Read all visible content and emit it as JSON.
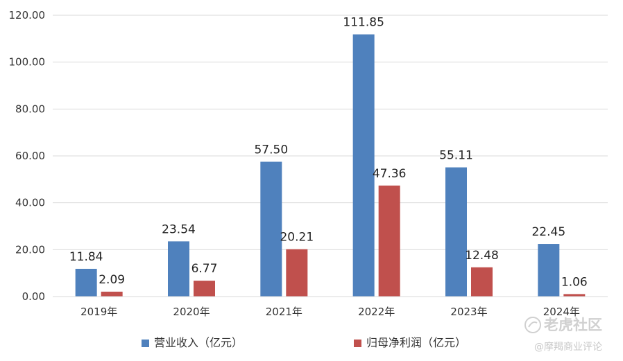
{
  "chart_data": {
    "type": "bar",
    "title": "",
    "xlabel": "",
    "ylabel": "",
    "ylim": [
      0,
      120
    ],
    "yticks": [
      "0.00",
      "20.00",
      "40.00",
      "60.00",
      "80.00",
      "100.00",
      "120.00"
    ],
    "grid": true,
    "legend_position": "bottom",
    "categories": [
      "2019年",
      "2020年",
      "2021年",
      "2022年",
      "2023年",
      "2024年"
    ],
    "series": [
      {
        "name": "营业收入（亿元）",
        "color": "#4f81bd",
        "values": [
          11.84,
          23.54,
          57.5,
          111.85,
          55.11,
          22.45
        ],
        "labels": [
          "11.84",
          "23.54",
          "57.50",
          "111.85",
          "55.11",
          "22.45"
        ]
      },
      {
        "name": "归母净利润（亿元）",
        "color": "#c0504d",
        "values": [
          2.09,
          6.77,
          20.21,
          47.36,
          12.48,
          1.06
        ],
        "labels": [
          "2.09",
          "6.77",
          "20.21",
          "47.36",
          "12.48",
          "1.06"
        ]
      }
    ]
  },
  "watermark": {
    "main": "老虎社区",
    "sub": "@摩羯商业评论"
  }
}
